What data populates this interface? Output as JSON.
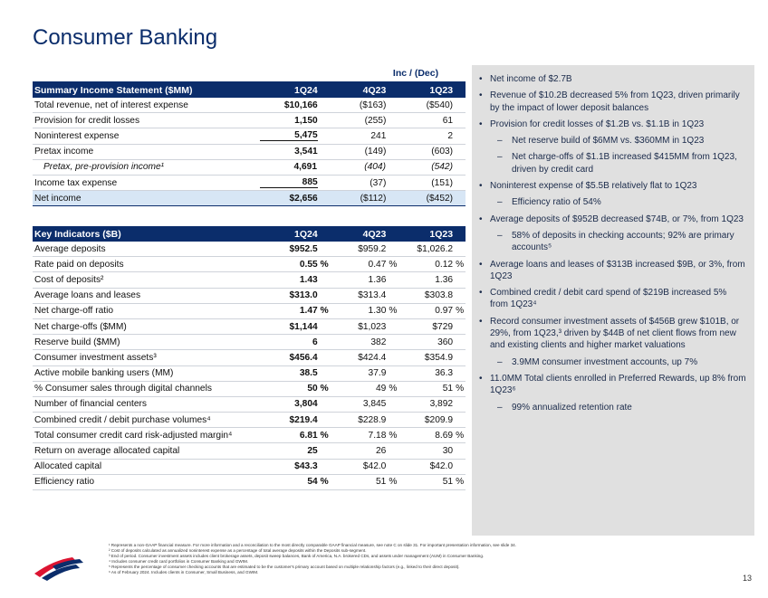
{
  "page": {
    "title": "Consumer Banking",
    "page_number": "13"
  },
  "summary": {
    "inc_dec_label": "Inc / (Dec)",
    "header": [
      "Summary Income Statement ($MM)",
      "1Q24",
      "4Q23",
      "1Q23"
    ],
    "rows": [
      {
        "label": "Total revenue, net of interest expense",
        "v1": "$10,166",
        "v2": "($163)",
        "v3": "($540)"
      },
      {
        "label": "Provision for credit losses",
        "v1": "1,150",
        "v2": "(255)",
        "v3": "61"
      },
      {
        "label": "Noninterest expense",
        "v1": "5,475",
        "v2": "241",
        "v3": "2"
      },
      {
        "label": "Pretax income",
        "v1": "3,541",
        "v2": "(149)",
        "v3": "(603)"
      },
      {
        "label": "Pretax, pre-provision income¹",
        "v1": "4,691",
        "v2": "(404)",
        "v3": "(542)"
      },
      {
        "label": "Income tax expense",
        "v1": "885",
        "v2": "(37)",
        "v3": "(151)"
      },
      {
        "label": "Net income",
        "v1": "$2,656",
        "v2": "($112)",
        "v3": "($452)"
      }
    ]
  },
  "indicators": {
    "header": [
      "Key Indicators ($B)",
      "1Q24",
      "4Q23",
      "1Q23"
    ],
    "rows": [
      {
        "label": "Average deposits",
        "v1": "$952.5",
        "u1": "",
        "v2": "$959.2",
        "u2": "",
        "v3": "$1,026.2",
        "u3": ""
      },
      {
        "label": "Rate paid on deposits",
        "v1": "0.55",
        "u1": "%",
        "v2": "0.47",
        "u2": "%",
        "v3": "0.12",
        "u3": "%"
      },
      {
        "label": "Cost of deposits²",
        "v1": "1.43",
        "u1": "",
        "v2": "1.36",
        "u2": "",
        "v3": "1.36",
        "u3": ""
      },
      {
        "label": "Average loans and leases",
        "v1": "$313.0",
        "u1": "",
        "v2": "$313.4",
        "u2": "",
        "v3": "$303.8",
        "u3": ""
      },
      {
        "label": "Net charge-off ratio",
        "v1": "1.47",
        "u1": "%",
        "v2": "1.30",
        "u2": "%",
        "v3": "0.97",
        "u3": "%"
      },
      {
        "label": "Net charge-offs ($MM)",
        "v1": "$1,144",
        "u1": "",
        "v2": "$1,023",
        "u2": "",
        "v3": "$729",
        "u3": ""
      },
      {
        "label": "Reserve build ($MM)",
        "v1": "6",
        "u1": "",
        "v2": "382",
        "u2": "",
        "v3": "360",
        "u3": ""
      },
      {
        "label": "Consumer investment assets³",
        "v1": "$456.4",
        "u1": "",
        "v2": "$424.4",
        "u2": "",
        "v3": "$354.9",
        "u3": ""
      },
      {
        "label": "Active mobile banking users (MM)",
        "v1": "38.5",
        "u1": "",
        "v2": "37.9",
        "u2": "",
        "v3": "36.3",
        "u3": ""
      },
      {
        "label": "% Consumer sales through digital channels",
        "v1": "50",
        "u1": "%",
        "v2": "49",
        "u2": "%",
        "v3": "51",
        "u3": "%"
      },
      {
        "label": "Number of financial centers",
        "v1": "3,804",
        "u1": "",
        "v2": "3,845",
        "u2": "",
        "v3": "3,892",
        "u3": ""
      },
      {
        "label": "Combined credit / debit purchase volumes⁴",
        "v1": "$219.4",
        "u1": "",
        "v2": "$228.9",
        "u2": "",
        "v3": "$209.9",
        "u3": ""
      },
      {
        "label": "Total consumer credit card risk-adjusted margin⁴",
        "v1": "6.81",
        "u1": "%",
        "v2": "7.18",
        "u2": "%",
        "v3": "8.69",
        "u3": "%"
      },
      {
        "label": "Return on average allocated capital",
        "v1": "25",
        "u1": "",
        "v2": "26",
        "u2": "",
        "v3": "30",
        "u3": ""
      },
      {
        "label": "Allocated capital",
        "v1": "$43.3",
        "u1": "",
        "v2": "$42.0",
        "u2": "",
        "v3": "$42.0",
        "u3": ""
      },
      {
        "label": "Efficiency ratio",
        "v1": "54",
        "u1": "%",
        "v2": "51",
        "u2": "%",
        "v3": "51",
        "u3": "%"
      }
    ]
  },
  "commentary": [
    {
      "type": "bullet",
      "text": "Net income of $2.7B"
    },
    {
      "type": "bullet",
      "text": "Revenue of $10.2B decreased 5% from 1Q23, driven primarily by the impact of lower deposit balances"
    },
    {
      "type": "bullet",
      "text": "Provision for credit losses of $1.2B vs. $1.1B in 1Q23"
    },
    {
      "type": "dash",
      "text": "Net reserve build of $6MM vs. $360MM in 1Q23"
    },
    {
      "type": "dash",
      "text": "Net charge-offs of $1.1B increased $415MM from 1Q23, driven by credit card"
    },
    {
      "type": "bullet",
      "text": "Noninterest expense of $5.5B relatively flat to 1Q23"
    },
    {
      "type": "dash",
      "text": "Efficiency ratio of 54%"
    },
    {
      "type": "bullet",
      "text": "Average deposits of $952B decreased $74B, or 7%, from 1Q23"
    },
    {
      "type": "dash",
      "text": "58% of deposits in checking accounts; 92% are primary accounts⁵"
    },
    {
      "type": "bullet",
      "text": "Average loans and leases of $313B increased $9B, or 3%, from 1Q23"
    },
    {
      "type": "bullet",
      "text": "Combined credit / debit card spend of $219B increased 5% from 1Q23⁴"
    },
    {
      "type": "bullet",
      "text": "Record consumer investment assets of $456B grew $101B, or 29%, from 1Q23,³ driven by $44B of net client flows from new and existing clients and higher market valuations"
    },
    {
      "type": "dash",
      "text": "3.9MM consumer investment accounts, up 7%"
    },
    {
      "type": "bullet",
      "text": "11.0MM Total clients enrolled in Preferred Rewards, up 8% from 1Q23⁶"
    },
    {
      "type": "dash",
      "text": "99% annualized retention rate"
    }
  ],
  "footnotes": [
    "¹ Represents a non-GAAP financial measure. For more information and a reconciliation to the most directly comparable GAAP financial measure, see note C on slide 31. For important presentation information, see slide 34.",
    "² Cost of deposits calculated as annualized noninterest expense as a percentage of total average deposits within the Deposits sub-segment.",
    "³ End of period. Consumer investment assets includes client brokerage assets, deposit sweep balances, Bank of America, N.A. brokered CDs, and assets under management (AUM) in Consumer Banking.",
    "⁴ Includes consumer credit card portfolios in Consumer Banking and GWIM.",
    "⁵ Represents the percentage of consumer checking accounts that are estimated to be the customer's primary account based on multiple relationship factors (e.g., linked to their direct deposit).",
    "⁶ As of February 2024. Includes clients in Consumer, Small Business, and GWIM."
  ],
  "colors": {
    "navy": "#0b2d6b",
    "red": "#dc1431",
    "highlight": "#d7e6f5",
    "panel": "#e0e0e0"
  },
  "icons": {
    "logo": "bank-flag-logo"
  }
}
